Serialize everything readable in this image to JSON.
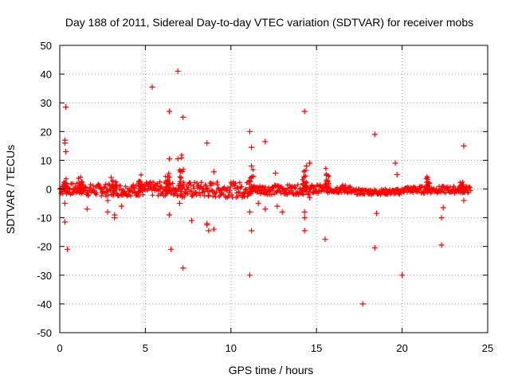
{
  "chart_data": {
    "type": "scatter",
    "title": "Day 188 of 2011, Sidereal Day-to-day VTEC variation (SDTVAR) for receiver mobs",
    "xlabel": "GPS time / hours",
    "ylabel": "SDTVAR / TECUs",
    "xlim": [
      0,
      25
    ],
    "ylim": [
      -50,
      50
    ],
    "x_ticks": [
      0,
      5,
      10,
      15,
      20,
      25
    ],
    "y_ticks": [
      -50,
      -40,
      -30,
      -20,
      -10,
      0,
      10,
      20,
      30,
      40,
      50
    ],
    "grid": true,
    "marker": "+",
    "series_color": "#ff0000",
    "band": {
      "x_range": [
        0,
        24
      ],
      "segments": [
        {
          "x0": 0.0,
          "x1": 1.5,
          "lo": -2.0,
          "hi": 2.0
        },
        {
          "x0": 1.5,
          "x1": 5.0,
          "lo": -2.5,
          "hi": 1.8
        },
        {
          "x0": 5.0,
          "x1": 7.0,
          "lo": -2.5,
          "hi": 2.5
        },
        {
          "x0": 7.0,
          "x1": 11.0,
          "lo": -3.0,
          "hi": 2.5
        },
        {
          "x0": 11.0,
          "x1": 15.0,
          "lo": -2.0,
          "hi": 1.5
        },
        {
          "x0": 15.0,
          "x1": 17.0,
          "lo": -1.5,
          "hi": 1.5
        },
        {
          "x0": 17.0,
          "x1": 20.0,
          "lo": -2.0,
          "hi": 0.0
        },
        {
          "x0": 20.0,
          "x1": 24.0,
          "lo": -1.5,
          "hi": 1.0
        }
      ],
      "spikes": [
        {
          "x": 0.3,
          "peak": 5
        },
        {
          "x": 1.2,
          "peak": 5
        },
        {
          "x": 3.2,
          "peak": 4
        },
        {
          "x": 4.7,
          "peak": 6
        },
        {
          "x": 6.3,
          "peak": 7
        },
        {
          "x": 7.1,
          "peak": 13
        },
        {
          "x": 11.2,
          "peak": 7
        },
        {
          "x": 14.3,
          "peak": 9
        },
        {
          "x": 15.6,
          "peak": 8
        },
        {
          "x": 21.5,
          "peak": 6
        },
        {
          "x": 23.5,
          "peak": 3
        }
      ]
    },
    "points": [
      [
        0.35,
        28.5
      ],
      [
        0.3,
        17
      ],
      [
        0.3,
        16
      ],
      [
        0.35,
        13
      ],
      [
        0.3,
        -5
      ],
      [
        0.3,
        -11.5
      ],
      [
        0.45,
        -21
      ],
      [
        1.6,
        -7
      ],
      [
        2.8,
        -8
      ],
      [
        2.8,
        -4
      ],
      [
        3.2,
        -9
      ],
      [
        3.2,
        -10
      ],
      [
        3.0,
        4
      ],
      [
        3.6,
        -6
      ],
      [
        5.4,
        35.5
      ],
      [
        6.4,
        27
      ],
      [
        6.9,
        41
      ],
      [
        7.2,
        25
      ],
      [
        6.4,
        10.5
      ],
      [
        6.9,
        10.5
      ],
      [
        6.4,
        -9
      ],
      [
        6.5,
        -21
      ],
      [
        7.0,
        -5
      ],
      [
        7.2,
        -27.5
      ],
      [
        7.7,
        -11
      ],
      [
        8.6,
        16
      ],
      [
        9.0,
        6
      ],
      [
        8.6,
        -12
      ],
      [
        8.7,
        -14.5
      ],
      [
        9.0,
        -14
      ],
      [
        8.6,
        -12.5
      ],
      [
        11.1,
        20
      ],
      [
        11.2,
        14.5
      ],
      [
        11.2,
        8
      ],
      [
        11.1,
        -8
      ],
      [
        11.2,
        -14.5
      ],
      [
        11.1,
        -30
      ],
      [
        11.6,
        -5
      ],
      [
        12.0,
        -7
      ],
      [
        12.0,
        16.5
      ],
      [
        12.6,
        5.5
      ],
      [
        12.7,
        -6
      ],
      [
        13.0,
        -8
      ],
      [
        14.3,
        27
      ],
      [
        14.4,
        8
      ],
      [
        14.6,
        9
      ],
      [
        14.3,
        -8
      ],
      [
        14.3,
        -10
      ],
      [
        14.3,
        -14.5
      ],
      [
        14.6,
        -3
      ],
      [
        15.5,
        -17.5
      ],
      [
        17.7,
        -40
      ],
      [
        18.4,
        19
      ],
      [
        18.5,
        -8.5
      ],
      [
        18.4,
        -20.5
      ],
      [
        19.6,
        9
      ],
      [
        19.7,
        5
      ],
      [
        20.0,
        -30
      ],
      [
        22.3,
        -19.5
      ],
      [
        22.4,
        -6.5
      ],
      [
        22.3,
        -10
      ],
      [
        23.6,
        15
      ],
      [
        23.6,
        -4
      ]
    ]
  }
}
